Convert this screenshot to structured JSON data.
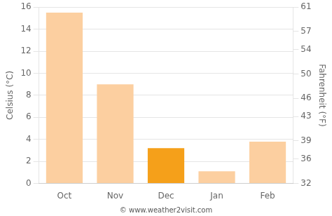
{
  "chart_data": {
    "type": "bar",
    "categories": [
      "Oct",
      "Nov",
      "Dec",
      "Jan",
      "Feb"
    ],
    "values": [
      15.5,
      9.0,
      3.2,
      1.1,
      3.8
    ],
    "colors": [
      "#FCCFA0",
      "#FCCFA0",
      "#F5A01A",
      "#FCCFA0",
      "#FCCFA0"
    ],
    "ylabel": "Celsius (°C)",
    "y2label": "Fahrenheit (°F)",
    "ylim": [
      0,
      16
    ],
    "yticks": [
      0,
      2,
      4,
      6,
      8,
      10,
      12,
      14,
      16
    ],
    "y2lim": [
      32,
      61
    ],
    "y2ticks": [
      32,
      36,
      39,
      43,
      46,
      50,
      54,
      57,
      61
    ],
    "grid": true,
    "annotation": "© www.weather2visit.com"
  }
}
